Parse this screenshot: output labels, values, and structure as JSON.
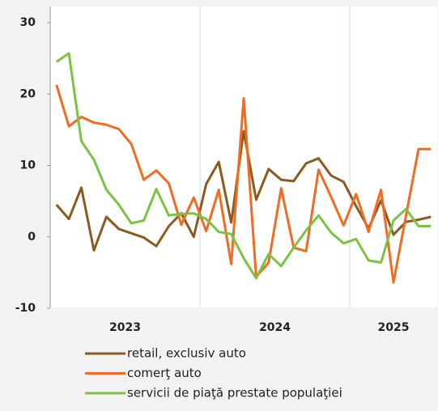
{
  "chart_data": {
    "type": "line",
    "categories": [
      "2023",
      "2023",
      "2023",
      "2023",
      "2023",
      "2023",
      "2023",
      "2023",
      "2023",
      "2023",
      "2023",
      "2023",
      "2024",
      "2024",
      "2024",
      "2024",
      "2024",
      "2024",
      "2024",
      "2024",
      "2024",
      "2024",
      "2024",
      "2024",
      "2025",
      "2025",
      "2025",
      "2025",
      "2025",
      "2025",
      "2025"
    ],
    "series": [
      {
        "name": "retail, exclusiv auto",
        "color": "#8b5a1e",
        "values": [
          4.5,
          2.5,
          6.9,
          -1.9,
          2.8,
          1.1,
          0.5,
          -0.1,
          -1.3,
          1.5,
          3.3,
          0,
          7.4,
          10.5,
          2.0,
          14.8,
          5.2,
          9.5,
          8.0,
          7.8,
          10.3,
          11.0,
          8.6,
          7.7,
          4.3,
          1.2,
          5.1,
          0.3,
          2.1,
          2.4,
          2.8
        ]
      },
      {
        "name": "comerţ auto",
        "color": "#f26b21",
        "values": [
          21.3,
          15.5,
          16.8,
          16.0,
          15.7,
          15.1,
          13.0,
          8.0,
          9.3,
          7.5,
          1.7,
          5.5,
          0.8,
          6.6,
          -3.8,
          19.4,
          -5.6,
          -3.6,
          6.8,
          -1.5,
          -2.0,
          9.4,
          5.6,
          1.6,
          6.0,
          0.7,
          6.6,
          -6.4,
          3.0,
          12.3,
          12.3
        ]
      },
      {
        "name": "servicii de piaţă prestate populaţiei",
        "color": "#7cc243",
        "values": [
          24.5,
          25.7,
          13.4,
          10.8,
          6.6,
          4.5,
          1.9,
          2.3,
          6.7,
          3.0,
          3.2,
          3.3,
          2.5,
          0.7,
          0.4,
          -3.0,
          -5.8,
          -2.4,
          -4.1,
          -1.5,
          0.9,
          3.0,
          0.6,
          -0.9,
          -0.3,
          -3.3,
          -3.6,
          2.3,
          3.9,
          1.5,
          1.5
        ]
      }
    ],
    "ylim": [
      -10,
      30
    ],
    "yticks": [
      -10,
      0,
      10,
      20,
      30
    ],
    "xgrid": true,
    "legend": "bottom"
  }
}
